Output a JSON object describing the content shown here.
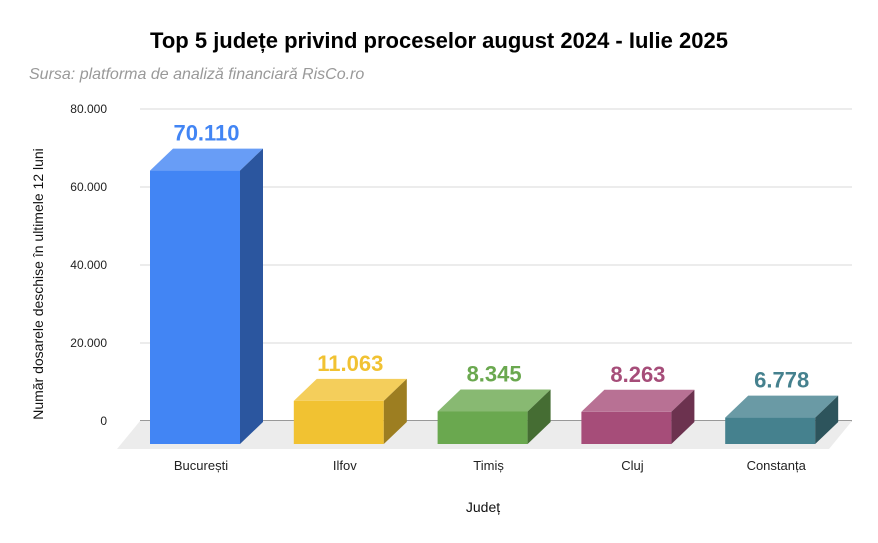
{
  "chart_data": {
    "type": "bar",
    "title": "Top 5 județe privind proceselor august 2024 - Iulie 2025",
    "subtitle": "Sursa: platforma de analiză financiară RisCo.ro",
    "xlabel": "Județ",
    "ylabel": "Număr dosarele deschise în ultimele 12 luni",
    "categories": [
      "București",
      "Ilfov",
      "Timiș",
      "Cluj",
      "Constanța"
    ],
    "values": [
      70110,
      11063,
      8345,
      8263,
      6778
    ],
    "value_labels": [
      "70.110",
      "11.063",
      "8.345",
      "8.263",
      "6.778"
    ],
    "colors": [
      "#4285f4",
      "#f1c232",
      "#6aa84f",
      "#a64d79",
      "#45818e"
    ],
    "ylim": [
      0,
      80000
    ],
    "yticks": [
      0,
      20000,
      40000,
      60000,
      80000
    ],
    "ytick_labels": [
      "0",
      "20.000",
      "40.000",
      "60.000",
      "80.000"
    ],
    "grid": true,
    "legend": "none",
    "style": "3d"
  }
}
